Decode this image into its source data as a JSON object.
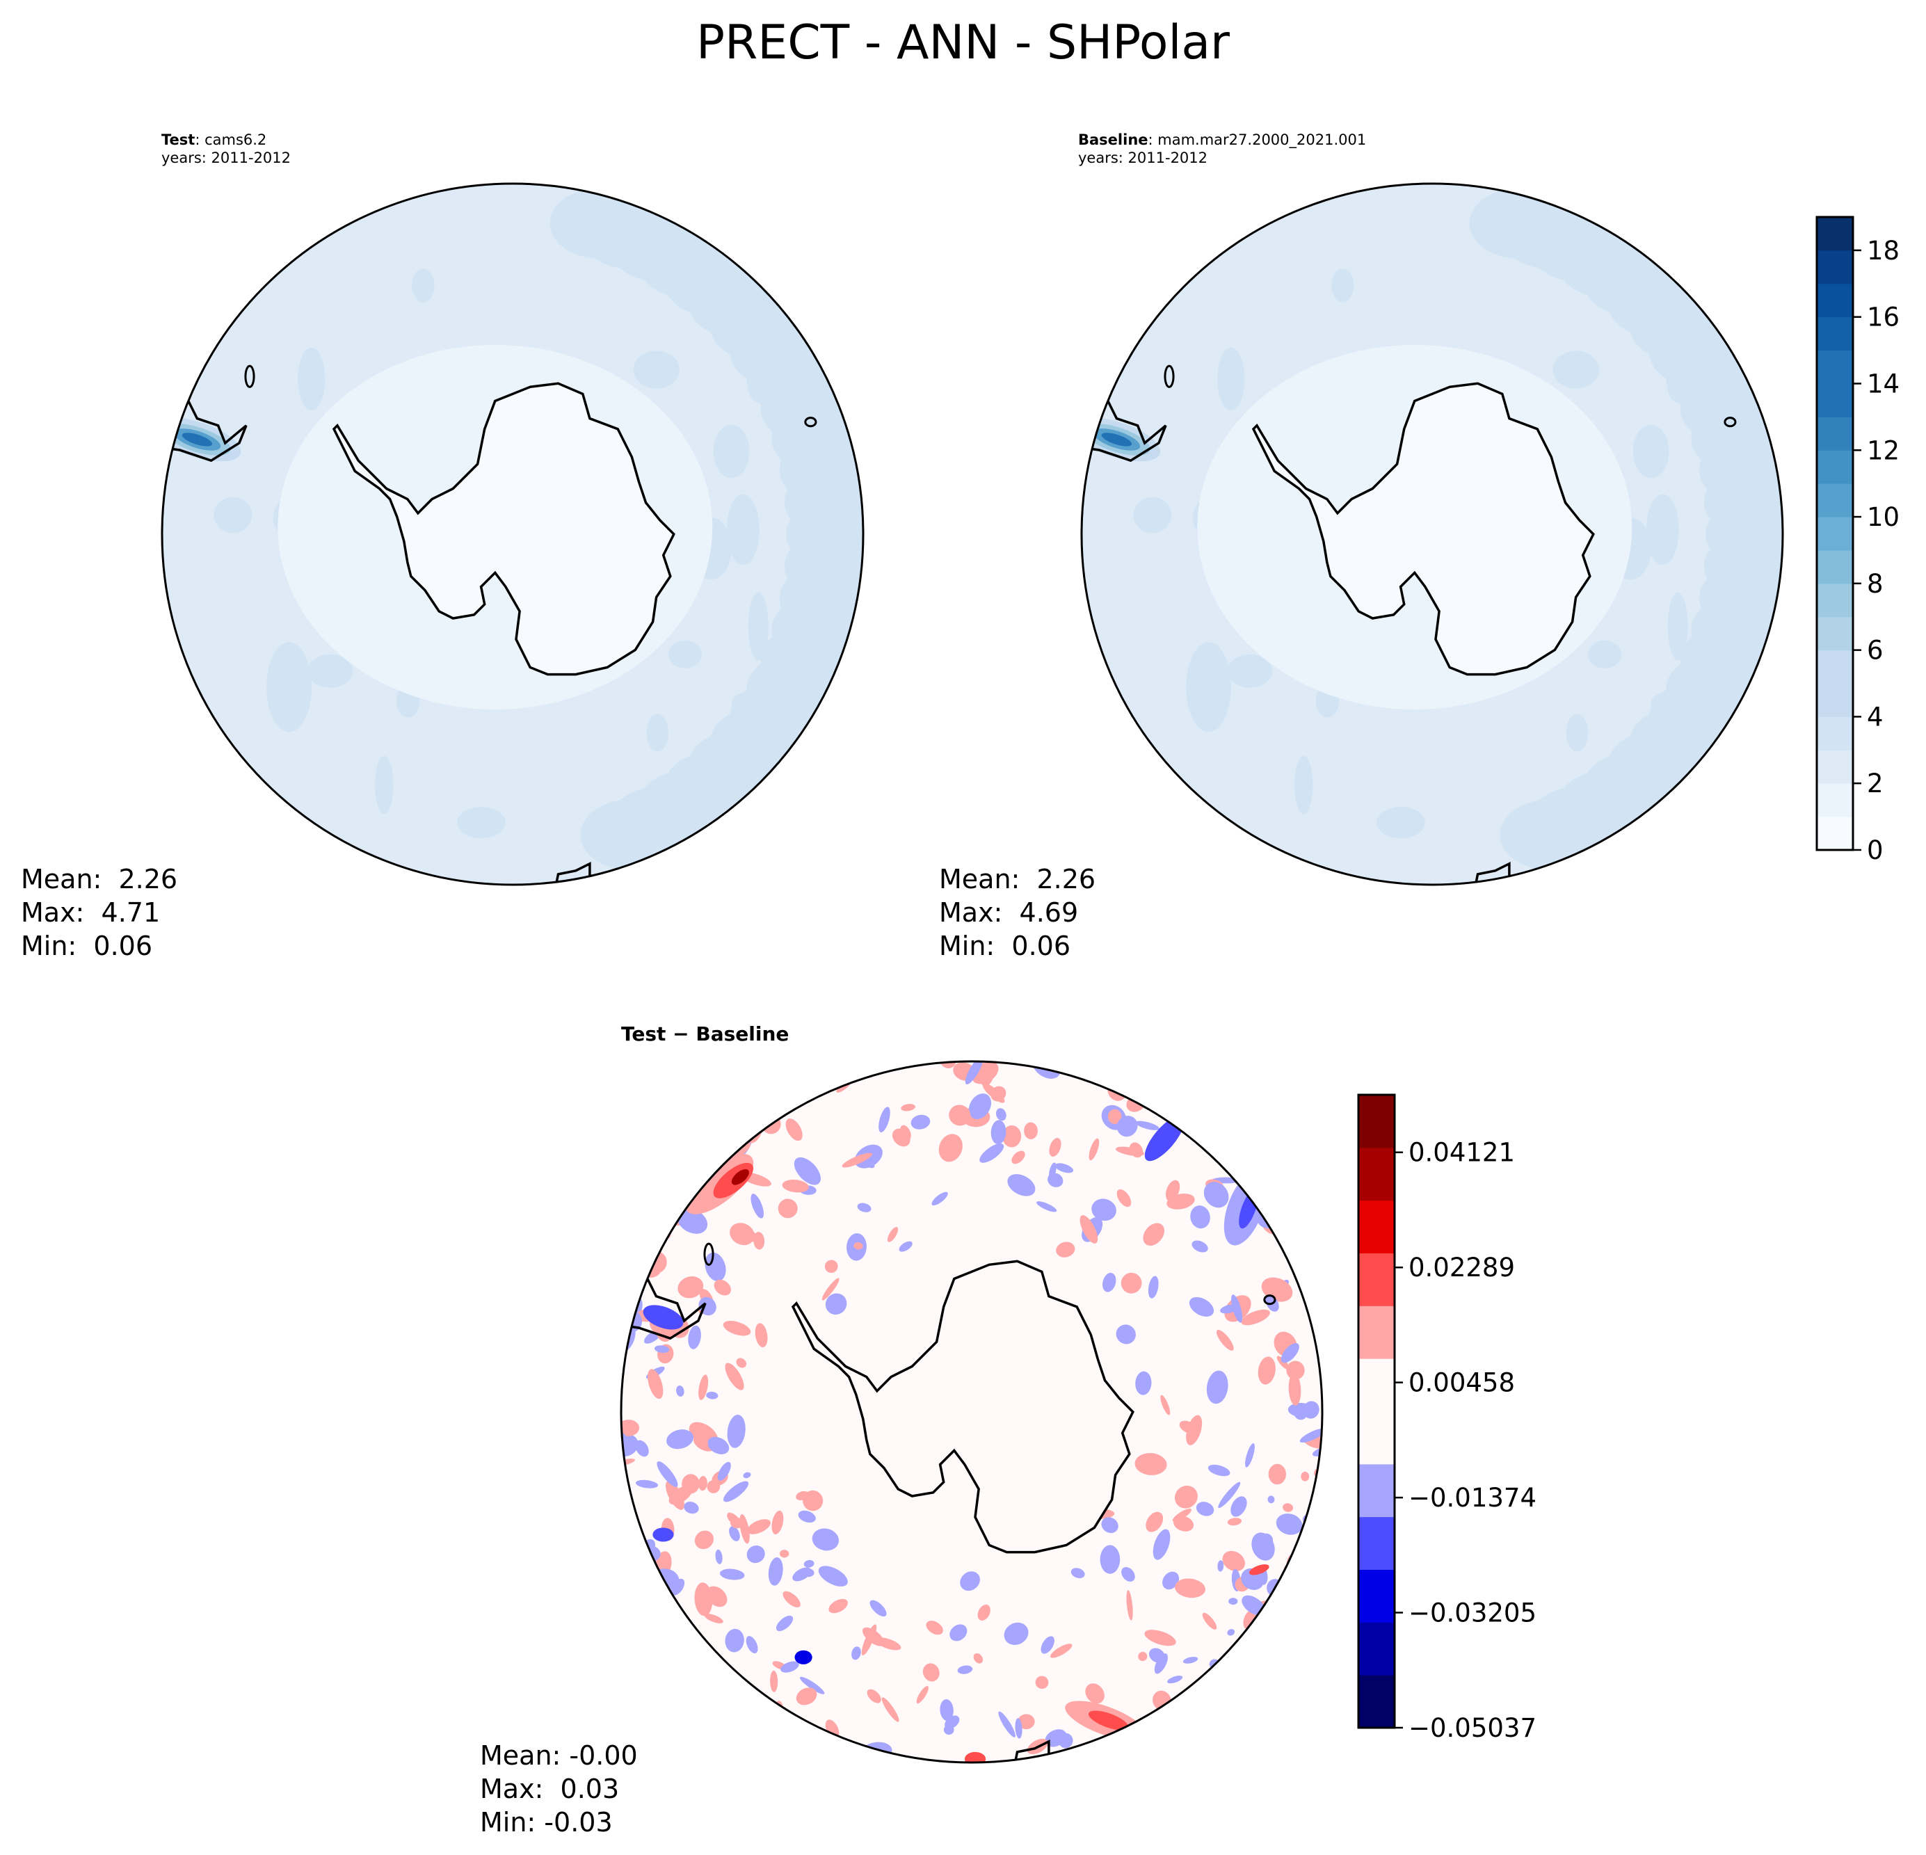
{
  "figure_title": "PRECT - ANN - SHPolar",
  "colors": {
    "sequential": [
      "#f7fbff",
      "#ebf3fb",
      "#deebf7",
      "#d2e3f3",
      "#c6dbef",
      "#b2d2e8",
      "#9ecae1",
      "#84bcdb",
      "#6baed6",
      "#57a0ce",
      "#4292c6",
      "#3181bd",
      "#2171b5",
      "#1361a9",
      "#08519c",
      "#08418a",
      "#08306b"
    ],
    "diverging": [
      "#000066",
      "#0000a6",
      "#0000e6",
      "#4d4dff",
      "#a6a6ff",
      "#fff9f9",
      "#ffa6a6",
      "#ff4d4d",
      "#e60000",
      "#a60000",
      "#7f0000"
    ]
  },
  "chart_data": [
    {
      "type": "contour-map",
      "projection": "South Polar Stereographic",
      "panel": "test",
      "label_bold": "Test",
      "label_rest": ": cams6.2",
      "years": "years: 2011-2012",
      "stats": {
        "mean": "Mean:  2.26",
        "max": "Max:  4.71",
        "min": "Min:  0.06"
      }
    },
    {
      "type": "contour-map",
      "projection": "South Polar Stereographic",
      "panel": "baseline",
      "label_bold": "Baseline",
      "label_rest": ": mam.mar27.2000_2021.001",
      "years": "years: 2011-2012",
      "stats": {
        "mean": "Mean:  2.26",
        "max": "Max:  4.69",
        "min": "Min:  0.06"
      },
      "colorbar": {
        "min": 0,
        "max": 19,
        "ticks": [
          "0",
          "2",
          "4",
          "6",
          "8",
          "10",
          "12",
          "14",
          "16",
          "18"
        ],
        "tick_values": [
          0,
          2,
          4,
          6,
          8,
          10,
          12,
          14,
          16,
          18
        ]
      }
    },
    {
      "type": "contour-map",
      "projection": "South Polar Stereographic",
      "panel": "difference",
      "label_bold": "Test − Baseline",
      "stats": {
        "mean": "Mean: -0.00",
        "max": "Max:  0.03",
        "min": "Min: -0.03"
      },
      "colorbar": {
        "min": -0.05037,
        "max": 0.05037,
        "ticks": [
          "0.04121",
          "0.02289",
          "0.00458",
          "−0.01374",
          "−0.03205",
          "−0.05037"
        ],
        "tick_values": [
          0.04121,
          0.02289,
          0.00458,
          -0.01374,
          -0.03205,
          -0.05037
        ]
      }
    }
  ]
}
